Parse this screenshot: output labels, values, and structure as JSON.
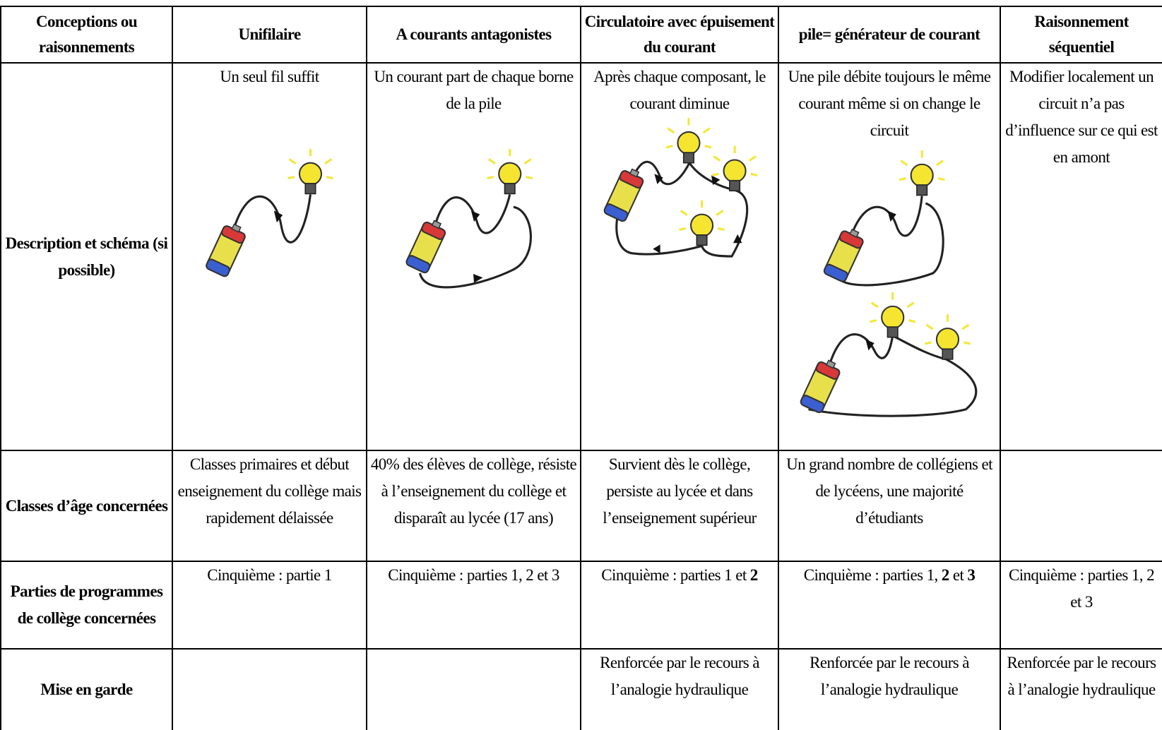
{
  "table": {
    "header": [
      "Conceptions ou raisonnements",
      "Unifilaire",
      "A courants antagonistes",
      "Circulatoire avec épuisement du courant",
      "pile= générateur de courant",
      "Raisonnement séquentiel"
    ],
    "rows": [
      {
        "label": "Description et schéma (si possible)",
        "cells": [
          "Un seul fil suffit",
          "Un courant part de chaque borne de la pile",
          "Après chaque composant, le courant diminue",
          "Une pile débite toujours le même courant même si on change le circuit",
          "Modifier localement un circuit n’a pas d’influence sur ce qui est en amont"
        ]
      },
      {
        "label": "Classes d’âge concernées",
        "cells": [
          "Classes primaires et début enseignement du collège mais rapidement délaissée",
          "40% des élèves de collège, résiste à l’enseignement du collège et disparaît au lycée (17 ans)",
          "Survient dès le collège, persiste au lycée et dans l’enseignement supérieur",
          "Un grand nombre de collégiens et de lycéens, une majorité d’étudiants",
          null
        ]
      },
      {
        "label": "Parties de programmes de collège concernées",
        "cells": [
          "Cinquième : partie 1",
          "Cinquième : parties 1, 2 et 3",
          {
            "runs": [
              {
                "text": "Cinquième : parties 1 et ",
                "bold": false
              },
              {
                "text": "2",
                "bold": true
              }
            ]
          },
          {
            "runs": [
              {
                "text": "Cinquième : parties 1, ",
                "bold": false
              },
              {
                "text": "2",
                "bold": true
              },
              {
                "text": " et ",
                "bold": false
              },
              {
                "text": "3",
                "bold": true
              }
            ]
          },
          "Cinquième : parties 1, 2 et 3"
        ]
      },
      {
        "label": "Mise en garde",
        "cells": [
          null,
          null,
          "Renforcée par le recours à l’analogie hydraulique",
          "Renforcée par le recours à l’analogie hydraulique",
          "Renforcée par le recours à l’analogie hydraulique"
        ]
      }
    ]
  }
}
